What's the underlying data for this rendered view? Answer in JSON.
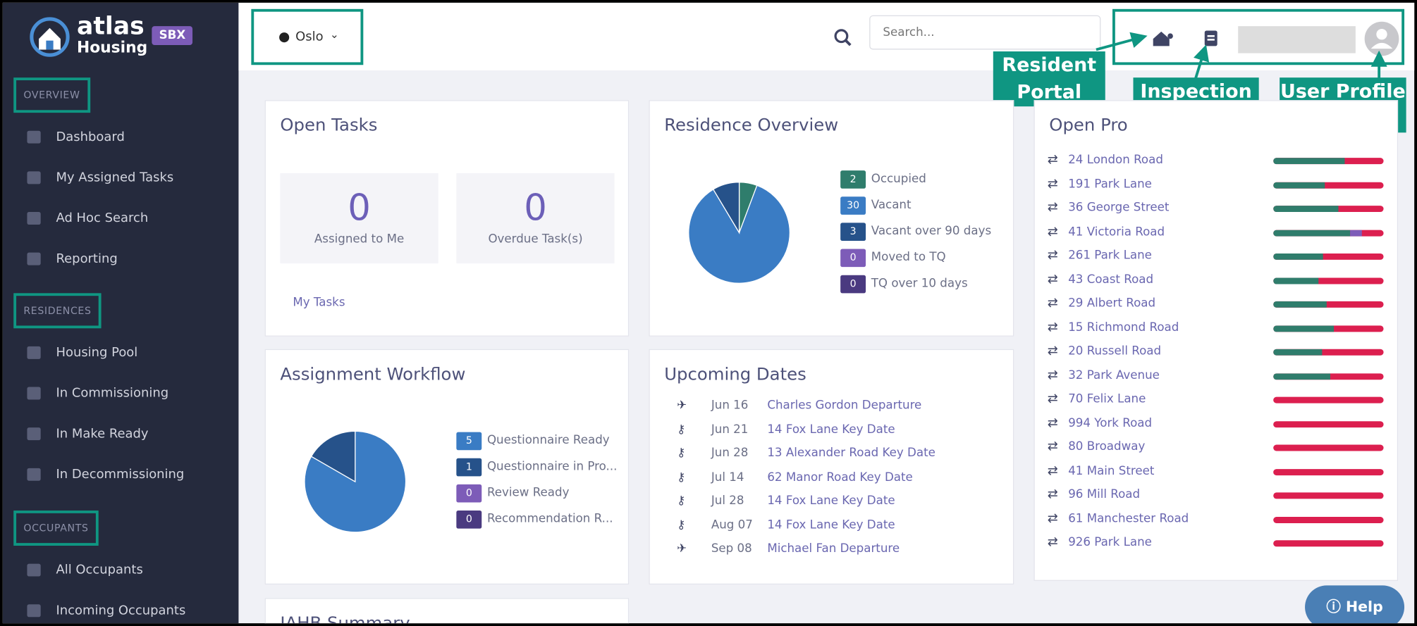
{
  "sidebar": {
    "brand": "atlas",
    "brand_sub": "Housing",
    "badge": "SBX",
    "sections": [
      {
        "title": "OVERVIEW",
        "items": [
          "Dashboard",
          "My Assigned Tasks",
          "Ad Hoc Search",
          "Reporting"
        ]
      },
      {
        "title": "RESIDENCES",
        "items": [
          "Housing Pool",
          "In Commissioning",
          "In Make Ready",
          "In Decommissioning"
        ]
      },
      {
        "title": "OCCUPANTS",
        "items": [
          "All Occupants",
          "Incoming Occupants"
        ]
      }
    ]
  },
  "topbar": {
    "location": "Oslo",
    "search_placeholder": "Search..."
  },
  "callouts": {
    "resident": "Resident Portal",
    "inspection": "Inspection Portal",
    "profile": "User Profile"
  },
  "open_tasks": {
    "title": "Open Tasks",
    "stats": [
      {
        "value": 0,
        "label": "Assigned to Me"
      },
      {
        "value": 0,
        "label": "Overdue Task(s)"
      }
    ],
    "link": "My Tasks"
  },
  "residence_overview": {
    "title": "Residence Overview",
    "legend": [
      {
        "value": 2,
        "label": "Occupied",
        "color": "#2f7d6c"
      },
      {
        "value": 30,
        "label": "Vacant",
        "color": "#3a7cc4"
      },
      {
        "value": 3,
        "label": "Vacant over 90 days",
        "color": "#26528a"
      },
      {
        "value": 0,
        "label": "Moved to TQ",
        "color": "#7d5cb8"
      },
      {
        "value": 0,
        "label": "TQ over 10 days",
        "color": "#4a3a80"
      }
    ]
  },
  "assignment_workflow": {
    "title": "Assignment Workflow",
    "legend": [
      {
        "value": 5,
        "label": "Questionnaire Ready",
        "color": "#3a7cc4"
      },
      {
        "value": 1,
        "label": "Questionnaire in Pro...",
        "color": "#26528a"
      },
      {
        "value": 0,
        "label": "Review Ready",
        "color": "#7d5cb8"
      },
      {
        "value": 0,
        "label": "Recommendation R...",
        "color": "#4a3a80"
      }
    ]
  },
  "upcoming_dates": {
    "title": "Upcoming Dates",
    "items": [
      {
        "date": "Jun 16",
        "text": "Charles Gordon Departure"
      },
      {
        "date": "Jun 21",
        "text": "14 Fox Lane Key Date"
      },
      {
        "date": "Jun 28",
        "text": "13 Alexander Road Key Date"
      },
      {
        "date": "Jul 14",
        "text": "62 Manor Road Key Date"
      },
      {
        "date": "Jul 28",
        "text": "14 Fox Lane Key Date"
      },
      {
        "date": "Aug 07",
        "text": "14 Fox Lane Key Date"
      },
      {
        "date": "Sep 08",
        "text": "Michael Fan Departure"
      }
    ]
  },
  "open_projects": {
    "title": "Open Pro",
    "items": [
      {
        "name": "24 London Road",
        "done": 65,
        "review": 0
      },
      {
        "name": "191 Park Lane",
        "done": 47,
        "review": 0
      },
      {
        "name": "36 George Street",
        "done": 59,
        "review": 0
      },
      {
        "name": "41 Victoria Road",
        "done": 70,
        "review": 10
      },
      {
        "name": "261 Park Lane",
        "done": 45,
        "review": 0
      },
      {
        "name": "43 Coast Road",
        "done": 41,
        "review": 0
      },
      {
        "name": "29 Albert Road",
        "done": 48,
        "review": 0
      },
      {
        "name": "15 Richmond Road",
        "done": 55,
        "review": 0
      },
      {
        "name": "20 Russell Road",
        "done": 44,
        "review": 0
      },
      {
        "name": "32 Park Avenue",
        "done": 52,
        "review": 0
      },
      {
        "name": "70 Felix Lane",
        "done": 0,
        "review": 0
      },
      {
        "name": "994 York Road",
        "done": 0,
        "review": 0
      },
      {
        "name": "80 Broadway",
        "done": 0,
        "review": 0
      },
      {
        "name": "41 Main Street",
        "done": 0,
        "review": 0
      },
      {
        "name": "96 Mill Road",
        "done": 0,
        "review": 0
      },
      {
        "name": "61 Manchester Road",
        "done": 0,
        "review": 0
      },
      {
        "name": "926 Park Lane",
        "done": 0,
        "review": 0
      }
    ]
  },
  "summary": {
    "title": "IAHB Summary"
  },
  "help": "Help"
}
